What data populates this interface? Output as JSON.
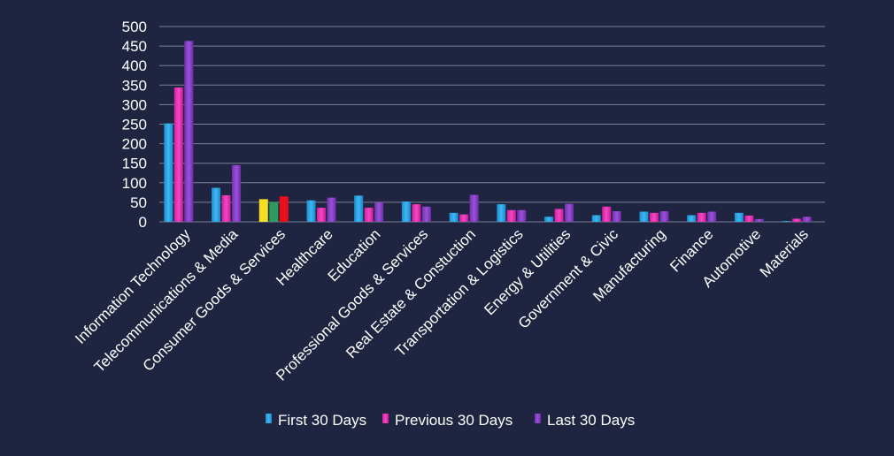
{
  "chart_data": {
    "type": "bar",
    "categories": [
      "Information Technology",
      "Telecommunications & Media",
      "Consumer Goods & Services",
      "Healthcare",
      "Education",
      "Professional Goods & Services",
      "Real Estate & Constuction",
      "Transportation & Logistics",
      "Energy & Utilities",
      "Government & Civic",
      "Manufacturing",
      "Finance",
      "Automotive",
      "Materials"
    ],
    "series": [
      {
        "name": "First 30 Days",
        "values": [
          252,
          87,
          58,
          55,
          67,
          52,
          23,
          45,
          13,
          17,
          26,
          17,
          23,
          2
        ]
      },
      {
        "name": "Previous 30 Days",
        "values": [
          344,
          68,
          51,
          36,
          36,
          45,
          19,
          30,
          33,
          39,
          23,
          23,
          16,
          8
        ]
      },
      {
        "name": "Last 30 Days",
        "values": [
          463,
          145,
          65,
          62,
          50,
          39,
          69,
          30,
          46,
          27,
          27,
          26,
          7,
          13
        ]
      }
    ],
    "consumer_goods_colors": [
      "#f4e01e",
      "#2e9a5e",
      "#e8101a"
    ],
    "series_colors": [
      "#27a7e8",
      "#ec2fb7",
      "#8c3fc8"
    ],
    "ylim": [
      0,
      500
    ],
    "yticks": [
      0,
      50,
      100,
      150,
      200,
      250,
      300,
      350,
      400,
      450,
      500
    ],
    "grid": true,
    "legend": "bottom"
  }
}
